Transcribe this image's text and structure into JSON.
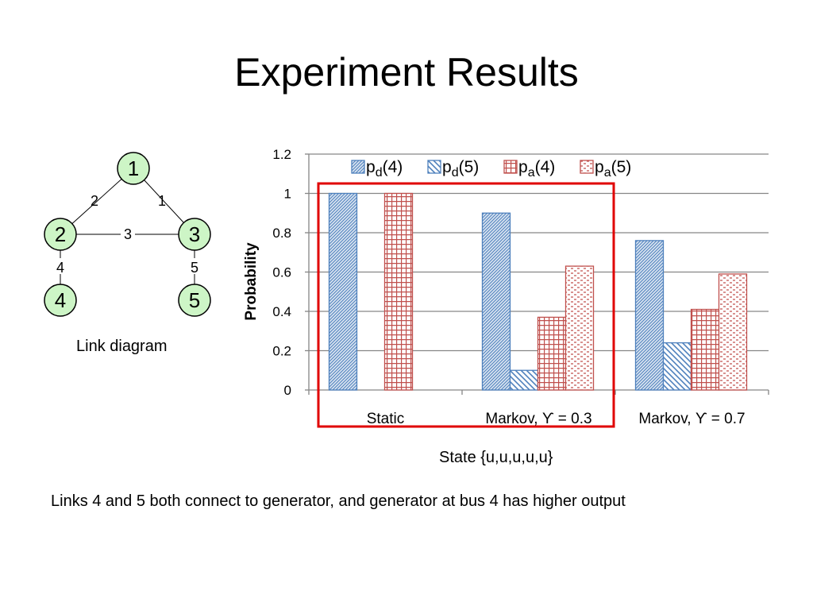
{
  "slide": {
    "title": "Experiment Results",
    "link_caption": "Link diagram",
    "state_caption": "State {u,u,u,u,u}",
    "footnote": "Links 4 and 5 both connect to generator, and generator at bus 4 has higher output"
  },
  "link_diagram": {
    "nodes": [
      "1",
      "2",
      "3",
      "4",
      "5"
    ],
    "edges": [
      {
        "from": "1",
        "to": "3",
        "label": "1"
      },
      {
        "from": "1",
        "to": "2",
        "label": "2"
      },
      {
        "from": "2",
        "to": "3",
        "label": "3"
      },
      {
        "from": "2",
        "to": "4",
        "label": "4"
      },
      {
        "from": "3",
        "to": "5",
        "label": "5"
      }
    ],
    "node_fill": "#cdf5c6",
    "node_stroke": "#000000"
  },
  "chart_data": {
    "type": "bar",
    "ylabel": "Probability",
    "ylim": [
      0,
      1.2
    ],
    "yticks": [
      "0",
      "0.2",
      "0.4",
      "0.6",
      "0.8",
      "1",
      "1.2"
    ],
    "categories": [
      "Static",
      "Markov, ϒ = 0.3",
      "Markov, ϒ = 0.7"
    ],
    "series": [
      {
        "name": "pd(4)",
        "base": "p",
        "sub": "d",
        "arg": "(4)",
        "values": [
          1.0,
          0.9,
          0.76
        ],
        "color": "#4f81bd",
        "pattern": "diag-dense"
      },
      {
        "name": "pd(5)",
        "base": "p",
        "sub": "d",
        "arg": "(5)",
        "values": [
          0,
          0.1,
          0.24
        ],
        "color": "#4f81bd",
        "pattern": "diag-wide"
      },
      {
        "name": "pa(4)",
        "base": "p",
        "sub": "a",
        "arg": "(4)",
        "values": [
          1.0,
          0.37,
          0.41
        ],
        "color": "#c0504d",
        "pattern": "grid"
      },
      {
        "name": "pa(5)",
        "base": "p",
        "sub": "a",
        "arg": "(5)",
        "values": [
          0,
          0.63,
          0.59
        ],
        "color": "#c0504d",
        "pattern": "dash"
      }
    ],
    "grid": true,
    "legend_position": "top",
    "highlight": {
      "categories": [
        0,
        1
      ],
      "color": "#e00000"
    }
  }
}
